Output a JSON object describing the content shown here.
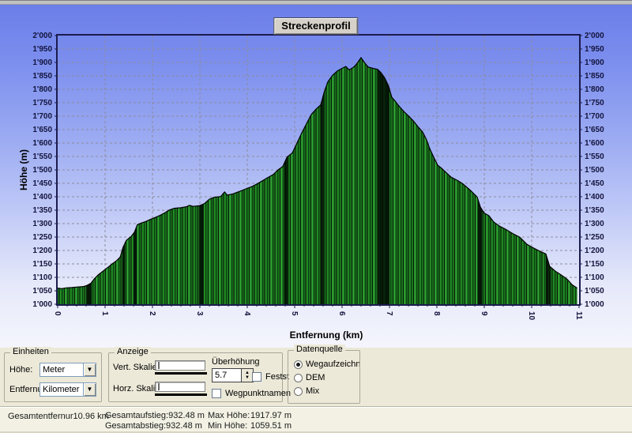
{
  "window": {
    "title": "Streckenprofil"
  },
  "chart_data": {
    "type": "area",
    "title": "Streckenprofil",
    "xlabel": "Entfernung (km)",
    "ylabel": "Höhe (m)",
    "x_axis": {
      "min": 0,
      "max": 11,
      "step": 1,
      "minor_step": 0.2,
      "unit": "km"
    },
    "y_axis": {
      "min": 1000,
      "max": 2000,
      "step": 50,
      "unit": "m",
      "thousands_separator": "'"
    },
    "grid": true,
    "legend": "none",
    "colors": {
      "grid": "#8C8C9C",
      "frame": "#1B1B4E",
      "axis": "#1B1B4E",
      "label": "#14143C",
      "fill_base": "#1D7C20",
      "fill_dark": "#0B4412",
      "fill_light": "#2FA133",
      "fill_mid": "#249026",
      "band": "#020A04"
    },
    "profile_points": [
      [
        0,
        1060
      ],
      [
        0.08,
        1058
      ],
      [
        0.18,
        1061
      ],
      [
        0.3,
        1062
      ],
      [
        0.42,
        1064
      ],
      [
        0.55,
        1066
      ],
      [
        0.62,
        1070
      ],
      [
        0.7,
        1078
      ],
      [
        0.78,
        1096
      ],
      [
        0.86,
        1110
      ],
      [
        0.95,
        1122
      ],
      [
        1.05,
        1136
      ],
      [
        1.15,
        1150
      ],
      [
        1.25,
        1163
      ],
      [
        1.32,
        1176
      ],
      [
        1.38,
        1212
      ],
      [
        1.45,
        1238
      ],
      [
        1.55,
        1252
      ],
      [
        1.62,
        1268
      ],
      [
        1.68,
        1296
      ],
      [
        1.76,
        1302
      ],
      [
        1.86,
        1308
      ],
      [
        1.96,
        1316
      ],
      [
        2.06,
        1323
      ],
      [
        2.16,
        1331
      ],
      [
        2.26,
        1340
      ],
      [
        2.36,
        1351
      ],
      [
        2.46,
        1357
      ],
      [
        2.6,
        1359
      ],
      [
        2.72,
        1363
      ],
      [
        2.78,
        1368
      ],
      [
        2.86,
        1364
      ],
      [
        3.0,
        1367
      ],
      [
        3.1,
        1375
      ],
      [
        3.2,
        1391
      ],
      [
        3.3,
        1398
      ],
      [
        3.44,
        1401
      ],
      [
        3.52,
        1418
      ],
      [
        3.58,
        1406
      ],
      [
        3.7,
        1411
      ],
      [
        3.84,
        1420
      ],
      [
        3.95,
        1428
      ],
      [
        4.1,
        1438
      ],
      [
        4.25,
        1452
      ],
      [
        4.4,
        1468
      ],
      [
        4.55,
        1483
      ],
      [
        4.65,
        1500
      ],
      [
        4.75,
        1513
      ],
      [
        4.84,
        1548
      ],
      [
        4.95,
        1563
      ],
      [
        5.05,
        1600
      ],
      [
        5.15,
        1638
      ],
      [
        5.25,
        1672
      ],
      [
        5.35,
        1706
      ],
      [
        5.45,
        1726
      ],
      [
        5.55,
        1742
      ],
      [
        5.62,
        1788
      ],
      [
        5.7,
        1828
      ],
      [
        5.8,
        1852
      ],
      [
        5.9,
        1868
      ],
      [
        6.0,
        1878
      ],
      [
        6.08,
        1885
      ],
      [
        6.15,
        1872
      ],
      [
        6.25,
        1883
      ],
      [
        6.32,
        1897
      ],
      [
        6.4,
        1918
      ],
      [
        6.48,
        1898
      ],
      [
        6.55,
        1883
      ],
      [
        6.65,
        1878
      ],
      [
        6.75,
        1874
      ],
      [
        6.82,
        1862
      ],
      [
        6.9,
        1842
      ],
      [
        6.98,
        1812
      ],
      [
        7.05,
        1770
      ],
      [
        7.12,
        1756
      ],
      [
        7.2,
        1738
      ],
      [
        7.3,
        1718
      ],
      [
        7.4,
        1701
      ],
      [
        7.5,
        1683
      ],
      [
        7.6,
        1661
      ],
      [
        7.7,
        1641
      ],
      [
        7.78,
        1613
      ],
      [
        7.85,
        1579
      ],
      [
        7.95,
        1541
      ],
      [
        8.02,
        1517
      ],
      [
        8.1,
        1506
      ],
      [
        8.2,
        1489
      ],
      [
        8.3,
        1473
      ],
      [
        8.45,
        1459
      ],
      [
        8.55,
        1448
      ],
      [
        8.7,
        1425
      ],
      [
        8.85,
        1399
      ],
      [
        8.92,
        1361
      ],
      [
        9.0,
        1339
      ],
      [
        9.1,
        1329
      ],
      [
        9.2,
        1306
      ],
      [
        9.32,
        1291
      ],
      [
        9.45,
        1279
      ],
      [
        9.6,
        1263
      ],
      [
        9.75,
        1249
      ],
      [
        9.9,
        1223
      ],
      [
        10.0,
        1213
      ],
      [
        10.15,
        1199
      ],
      [
        10.3,
        1187
      ],
      [
        10.38,
        1141
      ],
      [
        10.5,
        1123
      ],
      [
        10.62,
        1109
      ],
      [
        10.75,
        1093
      ],
      [
        10.85,
        1073
      ],
      [
        10.96,
        1060
      ]
    ],
    "dark_bands": [
      [
        0.6,
        0.72
      ],
      [
        1.36,
        1.42
      ],
      [
        1.6,
        1.67
      ],
      [
        2.98,
        3.08
      ],
      [
        4.78,
        4.86
      ],
      [
        5.54,
        5.62
      ],
      [
        6.76,
        7.0
      ],
      [
        8.86,
        8.96
      ],
      [
        10.3,
        10.4
      ]
    ],
    "max_elevation_m": 1917.97,
    "min_elevation_m": 1059.51,
    "total_distance_km": 10.96
  },
  "panels": {
    "einheiten": {
      "title": "Einheiten",
      "hoehe_label": "Höhe:",
      "hoehe_value": "Meter",
      "entfernung_label": "Entfernung:",
      "entfernung_value": "Kilometer",
      "dropdown_arrow": "▼"
    },
    "anzeige": {
      "title": "Anzeige",
      "vert_label": "Vert. Skalieru",
      "horz_label": "Horz. Skalieru",
      "ueberhoehung_label": "Überhöhung",
      "ueberhoehung_value": "5.7",
      "spin_up": "▲",
      "spin_down": "▼",
      "festst_label": "Festst",
      "wegpunktnamen_label": "Wegpunktnamen"
    },
    "datenquelle": {
      "title": "Datenquelle",
      "options": [
        {
          "label": "Wegaufzeichnu",
          "selected": true
        },
        {
          "label": "DEM",
          "selected": false
        },
        {
          "label": "Mix",
          "selected": false
        }
      ]
    }
  },
  "statusbar": {
    "entfernung_label": "Gesamtentfernur",
    "entfernung_value": "10.96 km",
    "aufstieg_label": "Gesamtaufstieg:",
    "aufstieg_value": "932.48 m",
    "abstieg_label": "Gesamtabstieg:",
    "abstieg_value": "932.48 m",
    "max_label": "Max Höhe:",
    "max_value": "1917.97 m",
    "min_label": "Min Höhe:",
    "min_value": "1059.51 m"
  }
}
